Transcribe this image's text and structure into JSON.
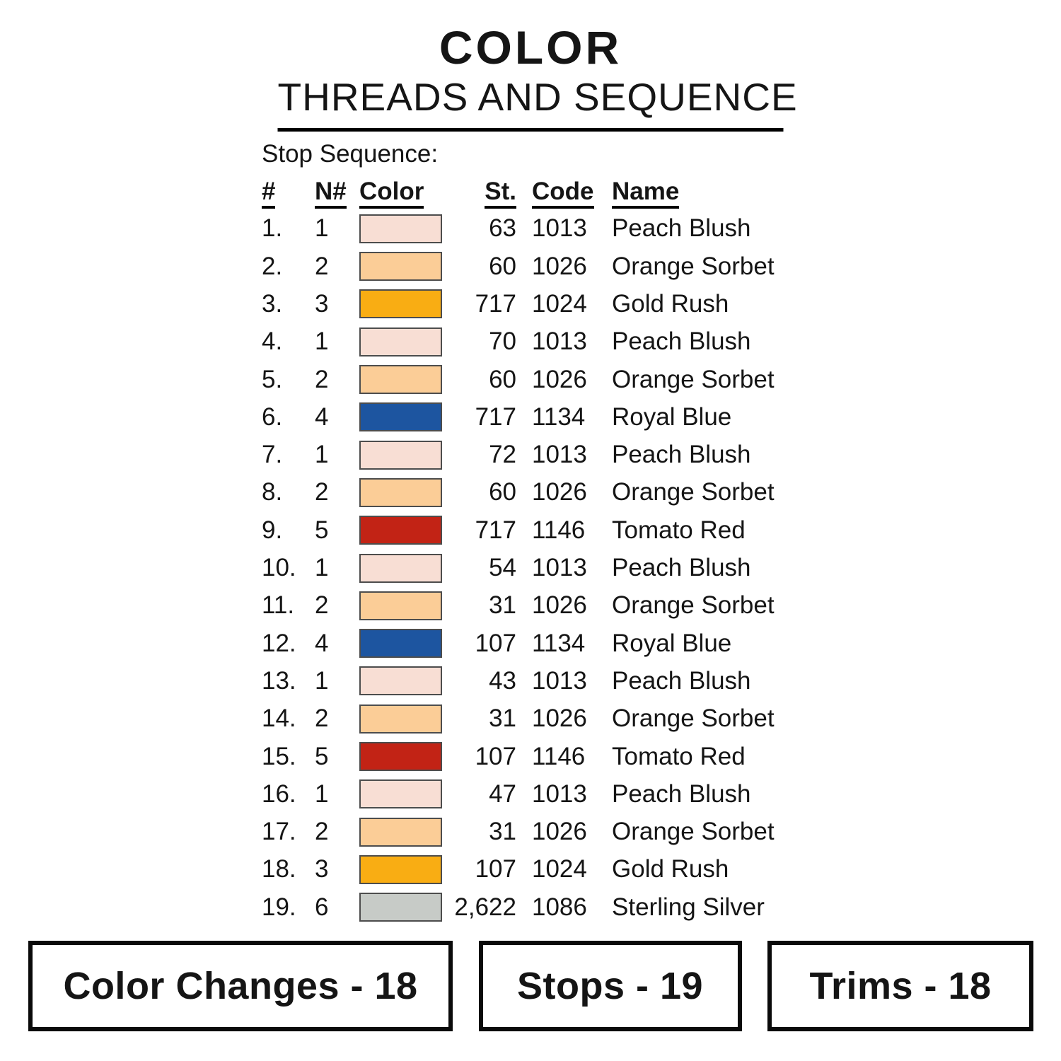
{
  "page": {
    "title": "COLOR",
    "subtitle": "THREADS AND SEQUENCE"
  },
  "stop_sequence_label": "Stop Sequence:",
  "table": {
    "headers": {
      "num": "#",
      "needle": "N#",
      "color": "Color",
      "st": "St.",
      "code": "Code",
      "name": "Name"
    },
    "rows": [
      {
        "num": "1.",
        "needle": "1",
        "color": "peach_blush",
        "st": "63",
        "code": "1013",
        "name": "Peach Blush"
      },
      {
        "num": "2.",
        "needle": "2",
        "color": "orange_sorbet",
        "st": "60",
        "code": "1026",
        "name": "Orange Sorbet"
      },
      {
        "num": "3.",
        "needle": "3",
        "color": "gold_rush",
        "st": "717",
        "code": "1024",
        "name": "Gold Rush"
      },
      {
        "num": "4.",
        "needle": "1",
        "color": "peach_blush",
        "st": "70",
        "code": "1013",
        "name": "Peach Blush"
      },
      {
        "num": "5.",
        "needle": "2",
        "color": "orange_sorbet",
        "st": "60",
        "code": "1026",
        "name": "Orange Sorbet"
      },
      {
        "num": "6.",
        "needle": "4",
        "color": "royal_blue",
        "st": "717",
        "code": "1134",
        "name": "Royal Blue"
      },
      {
        "num": "7.",
        "needle": "1",
        "color": "peach_blush",
        "st": "72",
        "code": "1013",
        "name": "Peach Blush"
      },
      {
        "num": "8.",
        "needle": "2",
        "color": "orange_sorbet",
        "st": "60",
        "code": "1026",
        "name": "Orange Sorbet"
      },
      {
        "num": "9.",
        "needle": "5",
        "color": "tomato_red",
        "st": "717",
        "code": "1146",
        "name": "Tomato Red"
      },
      {
        "num": "10.",
        "needle": "1",
        "color": "peach_blush",
        "st": "54",
        "code": "1013",
        "name": "Peach Blush"
      },
      {
        "num": "11.",
        "needle": "2",
        "color": "orange_sorbet",
        "st": "31",
        "code": "1026",
        "name": "Orange Sorbet"
      },
      {
        "num": "12.",
        "needle": "4",
        "color": "royal_blue",
        "st": "107",
        "code": "1134",
        "name": "Royal Blue"
      },
      {
        "num": "13.",
        "needle": "1",
        "color": "peach_blush",
        "st": "43",
        "code": "1013",
        "name": "Peach Blush"
      },
      {
        "num": "14.",
        "needle": "2",
        "color": "orange_sorbet",
        "st": "31",
        "code": "1026",
        "name": "Orange Sorbet"
      },
      {
        "num": "15.",
        "needle": "5",
        "color": "tomato_red",
        "st": "107",
        "code": "1146",
        "name": "Tomato Red"
      },
      {
        "num": "16.",
        "needle": "1",
        "color": "peach_blush",
        "st": "47",
        "code": "1013",
        "name": "Peach Blush"
      },
      {
        "num": "17.",
        "needle": "2",
        "color": "orange_sorbet",
        "st": "31",
        "code": "1026",
        "name": "Orange Sorbet"
      },
      {
        "num": "18.",
        "needle": "3",
        "color": "gold_rush",
        "st": "107",
        "code": "1024",
        "name": "Gold Rush"
      },
      {
        "num": "19.",
        "needle": "6",
        "color": "sterling_silver",
        "st": "2,622",
        "code": "1086",
        "name": "Sterling Silver"
      }
    ]
  },
  "palette": {
    "peach_blush": "#f8ded4",
    "orange_sorbet": "#fbcd97",
    "gold_rush": "#f9ad13",
    "royal_blue": "#1d55a0",
    "tomato_red": "#c22315",
    "sterling_silver": "#c7cbc7",
    "swatch_border": "#4d4d4d"
  },
  "summary": [
    {
      "label": "Color Changes - 18"
    },
    {
      "label": "Stops - 19"
    },
    {
      "label": "Trims - 18"
    }
  ]
}
